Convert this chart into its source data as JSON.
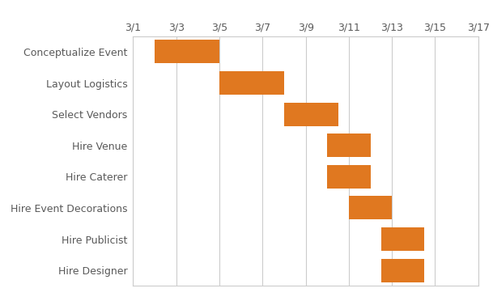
{
  "tasks": [
    "Conceptualize Event",
    "Layout Logistics",
    "Select Vendors",
    "Hire Venue",
    "Hire Caterer",
    "Hire Event Decorations",
    "Hire Publicist",
    "Hire Designer"
  ],
  "start_days": [
    2,
    5,
    8,
    10,
    10,
    11,
    12.5,
    12.5
  ],
  "durations": [
    3,
    3,
    2.5,
    2,
    2,
    2,
    2,
    2
  ],
  "bar_color": "#E07820",
  "bar_height": 0.75,
  "x_min": 1,
  "x_max": 17,
  "x_ticks": [
    1,
    3,
    5,
    7,
    9,
    11,
    13,
    15,
    17
  ],
  "x_tick_labels": [
    "3/1",
    "3/3",
    "3/5",
    "3/7",
    "3/9",
    "3/11",
    "3/13",
    "3/15",
    "3/17"
  ],
  "grid_color": "#cccccc",
  "background_color": "#ffffff",
  "spine_color": "#cccccc",
  "label_color": "#595959",
  "tick_color": "#595959",
  "figsize": [
    6.09,
    3.72
  ],
  "dpi": 100,
  "label_fontsize": 9,
  "tick_fontsize": 9
}
